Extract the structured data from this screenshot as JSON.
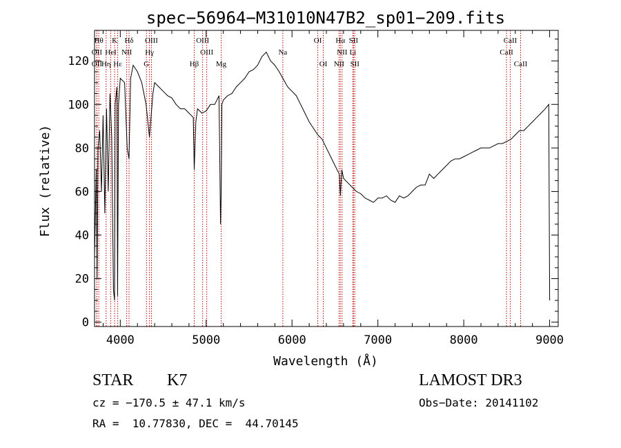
{
  "chart_data": {
    "type": "line",
    "title": "spec−56964−M31010N47B2_sp01−209.fits",
    "xlabel": "Wavelength (Å)",
    "ylabel": "Flux (relative)",
    "xlim": [
      3700,
      9100
    ],
    "ylim": [
      -2,
      134
    ],
    "x_ticks": [
      4000,
      5000,
      6000,
      7000,
      8000,
      9000
    ],
    "y_ticks": [
      0,
      20,
      40,
      60,
      80,
      100,
      120
    ],
    "series": [
      {
        "name": "spectrum",
        "x": [
          3700,
          3720,
          3730,
          3740,
          3760,
          3780,
          3800,
          3820,
          3840,
          3860,
          3880,
          3900,
          3920,
          3933,
          3940,
          3960,
          3968,
          3980,
          4000,
          4050,
          4080,
          4102,
          4120,
          4150,
          4200,
          4250,
          4300,
          4340,
          4380,
          4400,
          4450,
          4500,
          4550,
          4600,
          4650,
          4700,
          4750,
          4800,
          4850,
          4861,
          4880,
          4900,
          4950,
          5000,
          5050,
          5100,
          5150,
          5167,
          5175,
          5183,
          5200,
          5250,
          5300,
          5350,
          5400,
          5450,
          5500,
          5550,
          5600,
          5650,
          5700,
          5750,
          5800,
          5850,
          5893,
          5950,
          6000,
          6050,
          6100,
          6150,
          6200,
          6250,
          6300,
          6350,
          6400,
          6450,
          6500,
          6550,
          6563,
          6580,
          6600,
          6650,
          6700,
          6750,
          6800,
          6850,
          6900,
          6950,
          7000,
          7050,
          7100,
          7150,
          7200,
          7250,
          7300,
          7350,
          7400,
          7450,
          7500,
          7550,
          7600,
          7650,
          7700,
          7750,
          7800,
          7850,
          7900,
          7950,
          8000,
          8050,
          8100,
          8150,
          8200,
          8250,
          8300,
          8350,
          8400,
          8450,
          8500,
          8550,
          8600,
          8650,
          8700,
          8750,
          8800,
          8850,
          8900,
          8950,
          8990,
          9000
        ],
        "y": [
          30,
          70,
          20,
          80,
          88,
          60,
          95,
          50,
          98,
          60,
          105,
          85,
          15,
          10,
          100,
          108,
          12,
          100,
          112,
          110,
          80,
          75,
          112,
          118,
          115,
          110,
          100,
          85,
          105,
          110,
          108,
          106,
          104,
          103,
          100,
          98,
          98,
          96,
          94,
          70,
          92,
          98,
          96,
          97,
          100,
          100,
          104,
          45,
          60,
          100,
          102,
          104,
          105,
          108,
          110,
          112,
          115,
          116,
          118,
          122,
          124,
          120,
          118,
          115,
          112,
          108,
          106,
          104,
          100,
          96,
          92,
          89,
          86,
          84,
          80,
          76,
          72,
          68,
          58,
          70,
          66,
          64,
          62,
          60,
          59,
          57,
          56,
          55,
          57,
          57,
          58,
          56,
          55,
          58,
          57,
          58,
          60,
          62,
          63,
          63,
          68,
          66,
          68,
          70,
          72,
          74,
          75,
          75,
          76,
          77,
          78,
          79,
          80,
          80,
          80,
          81,
          82,
          82,
          83,
          84,
          86,
          88,
          88,
          90,
          92,
          94,
          96,
          98,
          100,
          10
        ]
      }
    ],
    "lines": [
      {
        "name": "Hθ",
        "wave": 3750,
        "row": 0
      },
      {
        "name": "OII",
        "wave": 3727,
        "row": 1
      },
      {
        "name": "OII",
        "wave": 3727,
        "row": 2
      },
      {
        "name": "Hη",
        "wave": 3835,
        "row": 2
      },
      {
        "name": "HeI",
        "wave": 3889,
        "row": 1
      },
      {
        "name": "K",
        "wave": 3934,
        "row": 0
      },
      {
        "name": "Hε",
        "wave": 3970,
        "row": 2
      },
      {
        "name": "NII",
        "wave": 4075,
        "row": 1
      },
      {
        "name": "Hδ",
        "wave": 4102,
        "row": 0
      },
      {
        "name": "OIII",
        "wave": 4363,
        "row": 0
      },
      {
        "name": "Hγ",
        "wave": 4340,
        "row": 1
      },
      {
        "name": "G",
        "wave": 4305,
        "row": 2
      },
      {
        "name": "Hβ",
        "wave": 4861,
        "row": 2
      },
      {
        "name": "OIII",
        "wave": 4959,
        "row": 0
      },
      {
        "name": "OIII",
        "wave": 5007,
        "row": 1
      },
      {
        "name": "Mg",
        "wave": 5175,
        "row": 2
      },
      {
        "name": "Na",
        "wave": 5893,
        "row": 1
      },
      {
        "name": "OI",
        "wave": 6300,
        "row": 0
      },
      {
        "name": "OI",
        "wave": 6364,
        "row": 2
      },
      {
        "name": "Hα",
        "wave": 6563,
        "row": 0
      },
      {
        "name": "NII",
        "wave": 6583,
        "row": 1
      },
      {
        "name": "NII",
        "wave": 6548,
        "row": 2
      },
      {
        "name": "SII",
        "wave": 6716,
        "row": 0
      },
      {
        "name": "Li",
        "wave": 6708,
        "row": 1
      },
      {
        "name": "SII",
        "wave": 6731,
        "row": 2
      },
      {
        "name": "CaII",
        "wave": 8542,
        "row": 0
      },
      {
        "name": "CaII",
        "wave": 8498,
        "row": 1
      },
      {
        "name": "CaII",
        "wave": 8662,
        "row": 2
      }
    ]
  },
  "info": {
    "object_class": "STAR",
    "subclass": "K7",
    "survey": "LAMOST DR3",
    "cz": "cz = −170.5 ± 47.1 km/s",
    "obs_date": "Obs−Date: 20141102",
    "coords": "RA =  10.77830, DEC =  44.70145"
  },
  "colors": {
    "axis": "#000000",
    "spectrum": "#000000",
    "line_marker": "#c00000"
  }
}
